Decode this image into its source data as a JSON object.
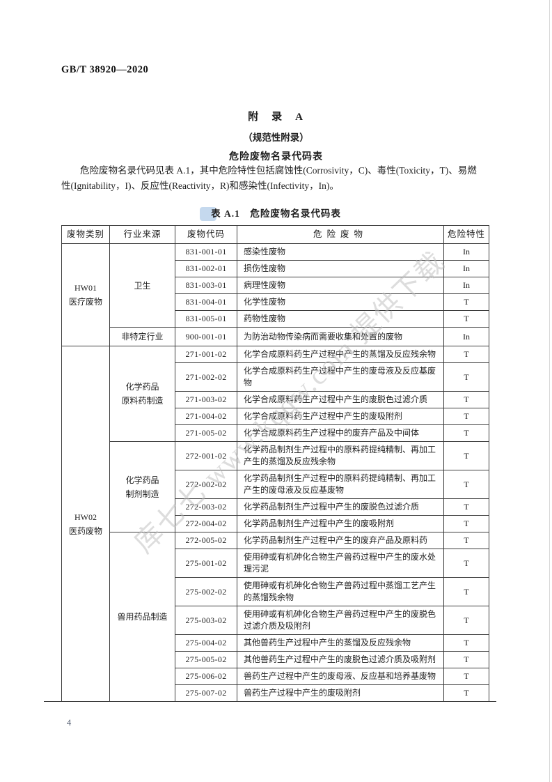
{
  "page": {
    "doc_number": "GB/T 38920—2020",
    "page_number": "4"
  },
  "appendix": {
    "title": "附　录　A",
    "subtitle": "（规范性附录）",
    "heading": "危险废物名录代码表",
    "intro_lines": [
      "危险废物名录代码见表 A.1，其中危险特性包括腐蚀性(Corrosivity，C)、毒性(Toxicity，T)、易燃",
      "性(Ignitability，I)、反应性(Reactivity，R)和感染性(Infectivity，In)。"
    ]
  },
  "watermark": {
    "text": "库七七 www.kqqw.com 提供下载"
  },
  "table": {
    "caption": "表 A.1　危险废物名录代码表",
    "headers": [
      "废物类别",
      "行业来源",
      "废物代码",
      "危险废物",
      "危险特性"
    ],
    "categories": [
      {
        "lines": [
          "HW01",
          "医疗废物"
        ],
        "industries": [
          {
            "lines": [
              "卫生"
            ],
            "rows": [
              {
                "code": "831-001-01",
                "waste": "感染性废物",
                "hazard": "In"
              },
              {
                "code": "831-002-01",
                "waste": "损伤性废物",
                "hazard": "In"
              },
              {
                "code": "831-003-01",
                "waste": "病理性废物",
                "hazard": "In"
              },
              {
                "code": "831-004-01",
                "waste": "化学性废物",
                "hazard": "T"
              },
              {
                "code": "831-005-01",
                "waste": "药物性废物",
                "hazard": "T"
              }
            ]
          },
          {
            "lines": [
              "非特定行业"
            ],
            "rows": [
              {
                "code": "900-001-01",
                "waste": "为防治动物传染病而需要收集和处置的废物",
                "hazard": "In"
              }
            ]
          }
        ]
      },
      {
        "lines": [
          "HW02",
          "医药废物"
        ],
        "industries": [
          {
            "lines": [
              "化学药品",
              "原料药制造"
            ],
            "rows": [
              {
                "code": "271-001-02",
                "waste": "化学合成原料药生产过程中产生的蒸馏及反应残余物",
                "hazard": "T"
              },
              {
                "code": "271-002-02",
                "waste": "化学合成原料药生产过程中产生的废母液及反应基废物",
                "hazard": "T"
              },
              {
                "code": "271-003-02",
                "waste": "化学合成原料药生产过程中产生的废脱色过滤介质",
                "hazard": "T"
              },
              {
                "code": "271-004-02",
                "waste": "化学合成原料药生产过程中产生的废吸附剂",
                "hazard": "T"
              },
              {
                "code": "271-005-02",
                "waste": "化学合成原料药生产过程中的废弃产品及中间体",
                "hazard": "T"
              }
            ]
          },
          {
            "lines": [
              "化学药品",
              "制剂制造"
            ],
            "rows": [
              {
                "code": "272-001-02",
                "waste": "化学药品制剂生产过程中的原料药提纯精制、再加工产生的蒸馏及反应残余物",
                "hazard": "T"
              },
              {
                "code": "272-002-02",
                "waste": "化学药品制剂生产过程中的原料药提纯精制、再加工产生的废母液及反应基废物",
                "hazard": "T"
              },
              {
                "code": "272-003-02",
                "waste": "化学药品制剂生产过程中产生的废脱色过滤介质",
                "hazard": "T"
              },
              {
                "code": "272-004-02",
                "waste": "化学药品制剂生产过程中产生的废吸附剂",
                "hazard": "T"
              }
            ]
          },
          {
            "lines": [
              "兽用药品制造"
            ],
            "rows": [
              {
                "code": "272-005-02",
                "waste": "化学药品制剂生产过程中产生的废弃产品及原料药",
                "hazard": "T"
              },
              {
                "code": "275-001-02",
                "waste": "使用砷或有机砷化合物生产兽药过程中产生的废水处理污泥",
                "hazard": "T"
              },
              {
                "code": "275-002-02",
                "waste": "使用砷或有机砷化合物生产兽药过程中蒸馏工艺产生的蒸馏残余物",
                "hazard": "T"
              },
              {
                "code": "275-003-02",
                "waste": "使用砷或有机砷化合物生产兽药过程中产生的废脱色过滤介质及吸附剂",
                "hazard": "T"
              },
              {
                "code": "275-004-02",
                "waste": "其他兽药生产过程中产生的蒸馏及反应残余物",
                "hazard": "T"
              },
              {
                "code": "275-005-02",
                "waste": "其他兽药生产过程中产生的废脱色过滤介质及吸附剂",
                "hazard": "T"
              },
              {
                "code": "275-006-02",
                "waste": "兽药生产过程中产生的废母液、反应基和培养基废物",
                "hazard": "T"
              },
              {
                "code": "275-007-02",
                "waste": "兽药生产过程中产生的废吸附剂",
                "hazard": "T"
              }
            ]
          }
        ]
      }
    ]
  }
}
